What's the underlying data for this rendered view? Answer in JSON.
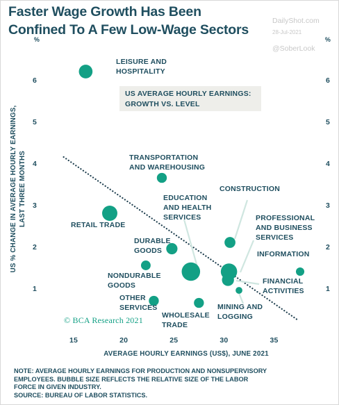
{
  "header": {
    "title": "Faster Wage Growth Has Been Confined To A Few Low-Wage Sectors"
  },
  "watermarks": {
    "site": "DailyShot.com",
    "date": "28-Jul-2021",
    "handle": "@SoberLook"
  },
  "inset_label": {
    "line1": "US AVERAGE HOURLY EARNINGS:",
    "line2": "GROWTH VS. LEVEL"
  },
  "credit": "© BCA Research 2021",
  "note": {
    "line1": "NOTE: AVERAGE HOURLY EARNINGS FOR PRODUCTION AND NONSUPERVISORY",
    "line2": "EMPLOYEES. BUBBLE SIZE REFLECTS THE RELATIVE SIZE OF THE LABOR",
    "line3": "FORCE IN GIVEN INDUSTRY.",
    "line4": "SOURCE: BUREAU OF LABOR STATISTICS."
  },
  "colors": {
    "bubble": "#13a085",
    "text": "#1f4e5f",
    "inset_bg": "#eeeeea",
    "trend": "#1f3f4f"
  },
  "chart_data": {
    "type": "scatter",
    "title": "Faster Wage Growth Has Been Confined To A Few Low-Wage Sectors",
    "xlabel": "AVERAGE HOURLY EARNINGS (US$), JUNE 2021",
    "ylabel": "US % CHANGE IN AVERAGE HOURLY EARNINGS, LAST THREE MONTHS",
    "y_unit": "%",
    "xlim": [
      12.5,
      38.5
    ],
    "ylim": [
      0,
      7
    ],
    "x_ticks": [
      15,
      20,
      25,
      30,
      35
    ],
    "y_ticks": [
      1,
      2,
      3,
      4,
      5,
      6
    ],
    "grid": false,
    "bubble_size_meaning": "relative size of the labor force in given industry",
    "points": [
      {
        "name": "LEISURE AND HOSPITALITY",
        "x": 16.2,
        "y": 6.2,
        "size": 0.55
      },
      {
        "name": "TRANSPORTATION AND WAREHOUSING",
        "x": 23.8,
        "y": 3.65,
        "size": 0.32
      },
      {
        "name": "RETAIL TRADE",
        "x": 18.6,
        "y": 2.8,
        "size": 0.65
      },
      {
        "name": "DURABLE GOODS",
        "x": 24.8,
        "y": 1.95,
        "size": 0.4
      },
      {
        "name": "NONDURABLE GOODS",
        "x": 22.2,
        "y": 1.55,
        "size": 0.3
      },
      {
        "name": "EDUCATION AND HEALTH SERVICES",
        "x": 26.7,
        "y": 1.4,
        "size": 0.85
      },
      {
        "name": "CONSTRUCTION",
        "x": 30.6,
        "y": 2.1,
        "size": 0.38
      },
      {
        "name": "PROFESSIONAL AND BUSINESS SERVICES",
        "x": 30.5,
        "y": 1.4,
        "size": 0.72
      },
      {
        "name": "FINANCIAL ACTIVITIES",
        "x": 30.4,
        "y": 1.2,
        "size": 0.45
      },
      {
        "name": "INFORMATION",
        "x": 37.6,
        "y": 1.4,
        "size": 0.22
      },
      {
        "name": "OTHER SERVICES",
        "x": 23.0,
        "y": 0.7,
        "size": 0.32
      },
      {
        "name": "WHOLESALE TRADE",
        "x": 27.5,
        "y": 0.65,
        "size": 0.32
      },
      {
        "name": "MINING AND LOGGING",
        "x": 31.5,
        "y": 0.95,
        "size": 0.12
      }
    ],
    "trendline": {
      "style": "dotted",
      "from": [
        14.0,
        4.15
      ],
      "to": [
        37.3,
        0.25
      ]
    }
  }
}
